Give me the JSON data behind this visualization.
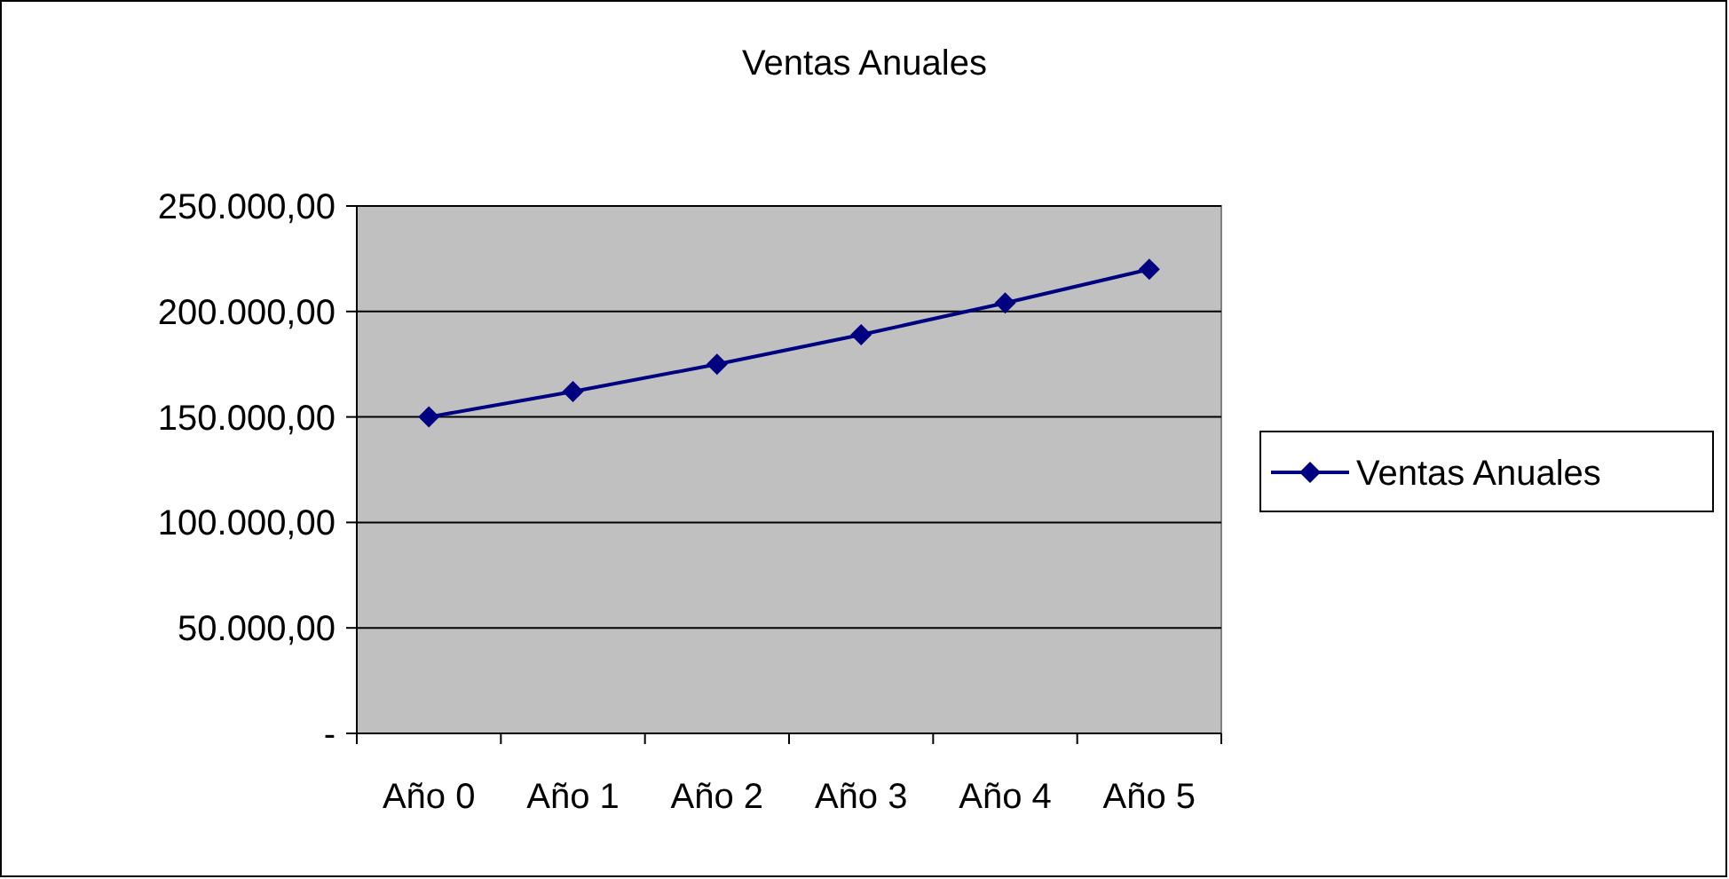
{
  "chart_data": {
    "type": "line",
    "title": "Ventas Anuales",
    "categories": [
      "Año 0",
      "Año 1",
      "Año 2",
      "Año 3",
      "Año 4",
      "Año 5"
    ],
    "series": [
      {
        "name": "Ventas Anuales",
        "color": "#000080",
        "values": [
          150000,
          162000,
          175000,
          189000,
          204000,
          220000
        ]
      }
    ],
    "ylim": [
      0,
      250000
    ],
    "yticks": [
      {
        "value": 0,
        "label": "-"
      },
      {
        "value": 50000,
        "label": "50.000,00"
      },
      {
        "value": 100000,
        "label": "100.000,00"
      },
      {
        "value": 150000,
        "label": "150.000,00"
      },
      {
        "value": 200000,
        "label": "200.000,00"
      },
      {
        "value": 250000,
        "label": "250.000,00"
      }
    ],
    "grid": "y",
    "legend": "right",
    "marker": "diamond",
    "line_style": "solid"
  }
}
